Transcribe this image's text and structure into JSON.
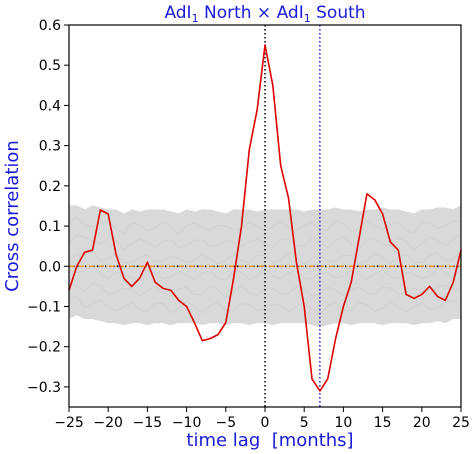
{
  "chart_data": {
    "type": "line",
    "title": "AdI₁ North × AdI₁ South",
    "title_parts": {
      "left_base": "AdI",
      "left_sub": "1",
      "middle": " North × ",
      "right_base": "AdI",
      "right_sub": "1",
      "right_suffix": " South"
    },
    "xlabel": "time lag  [months]",
    "ylabel": "Cross correlation",
    "xlim": [
      -25,
      25
    ],
    "ylim": [
      -0.35,
      0.6
    ],
    "xticks": [
      -25,
      -20,
      -15,
      -10,
      -5,
      0,
      5,
      10,
      15,
      20,
      25
    ],
    "yticks": [
      -0.3,
      -0.2,
      -0.1,
      0.0,
      0.1,
      0.2,
      0.3,
      0.4,
      0.5,
      0.6
    ],
    "ytick_labels": [
      "−0.3",
      "−0.2",
      "−0.1",
      "0.0",
      "0.1",
      "0.2",
      "0.3",
      "0.4",
      "0.5",
      "0.6"
    ],
    "xtick_labels": [
      "−25",
      "−20",
      "−15",
      "−10",
      "−5",
      "0",
      "5",
      "10",
      "15",
      "20",
      "25"
    ],
    "grid": false,
    "legend": "none",
    "series": [
      {
        "color": "#e00000",
        "x": [
          -25,
          -24,
          -23,
          -22,
          -21,
          -20,
          -19,
          -18,
          -17,
          -16,
          -15,
          -14,
          -13,
          -12,
          -11,
          -10,
          -9,
          -8,
          -7,
          -6,
          -5,
          -4,
          -3,
          -2,
          -1,
          0,
          1,
          2,
          3,
          4,
          5,
          6,
          7,
          8,
          9,
          10,
          11,
          12,
          13,
          14,
          15,
          16,
          17,
          18,
          19,
          20,
          21,
          22,
          23,
          24,
          25
        ],
        "y": [
          -0.06,
          0.0,
          0.035,
          0.04,
          0.14,
          0.13,
          0.03,
          -0.03,
          -0.05,
          -0.03,
          0.01,
          -0.04,
          -0.055,
          -0.06,
          -0.085,
          -0.1,
          -0.14,
          -0.185,
          -0.18,
          -0.17,
          -0.14,
          -0.03,
          0.1,
          0.29,
          0.39,
          0.55,
          0.45,
          0.25,
          0.17,
          0.01,
          -0.1,
          -0.28,
          -0.31,
          -0.28,
          -0.18,
          -0.1,
          -0.04,
          0.07,
          0.18,
          0.165,
          0.13,
          0.06,
          0.04,
          -0.07,
          -0.08,
          -0.07,
          -0.05,
          -0.075,
          -0.085,
          -0.04,
          0.04
        ]
      }
    ],
    "vertical_lines": [
      {
        "x": 0,
        "color": "#000000",
        "style": "dotted"
      },
      {
        "x": 7,
        "color": "#2222cc",
        "style": "dotted"
      }
    ],
    "horizontal_lines": [
      {
        "y": 0,
        "color": "#ff9900",
        "style": "dashdot"
      }
    ],
    "surrogate_band": {
      "color": "#d9d9d9",
      "description_only_for_rendering": false,
      "upper": [
        0.15,
        0.15,
        0.14,
        0.15,
        0.145,
        0.14,
        0.14,
        0.13,
        0.14,
        0.135,
        0.14,
        0.14,
        0.14,
        0.135,
        0.13,
        0.14,
        0.135,
        0.14,
        0.14,
        0.135,
        0.13,
        0.14,
        0.14,
        0.14,
        0.135,
        0.14,
        0.14,
        0.14,
        0.14,
        0.14,
        0.135,
        0.14,
        0.14,
        0.14,
        0.145,
        0.14,
        0.14,
        0.135,
        0.14,
        0.14,
        0.145,
        0.14,
        0.14,
        0.135,
        0.13,
        0.14,
        0.14,
        0.145,
        0.145,
        0.14,
        0.15
      ],
      "lower": [
        -0.13,
        -0.12,
        -0.13,
        -0.13,
        -0.135,
        -0.14,
        -0.14,
        -0.145,
        -0.14,
        -0.14,
        -0.145,
        -0.14,
        -0.14,
        -0.145,
        -0.14,
        -0.14,
        -0.14,
        -0.145,
        -0.14,
        -0.14,
        -0.145,
        -0.14,
        -0.14,
        -0.145,
        -0.14,
        -0.14,
        -0.145,
        -0.14,
        -0.14,
        -0.14,
        -0.14,
        -0.145,
        -0.15,
        -0.145,
        -0.14,
        -0.14,
        -0.145,
        -0.14,
        -0.14,
        -0.14,
        -0.145,
        -0.14,
        -0.14,
        -0.14,
        -0.145,
        -0.14,
        -0.14,
        -0.135,
        -0.14,
        -0.13,
        -0.13
      ]
    }
  }
}
